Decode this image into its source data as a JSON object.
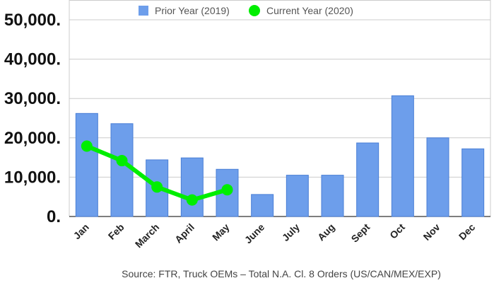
{
  "chart_data": {
    "type": "bar",
    "categories": [
      "Jan",
      "Feb",
      "March",
      "April",
      "May",
      "June",
      "July",
      "Aug",
      "Sept",
      "Oct",
      "Nov",
      "Dec"
    ],
    "series": [
      {
        "name": "Prior Year (2019)",
        "type": "bar",
        "color": "#6d9eeb",
        "values": [
          26200,
          23600,
          14400,
          14900,
          12000,
          5600,
          10500,
          10500,
          18700,
          30700,
          20000,
          17200
        ]
      },
      {
        "name": "Current Year (2020)",
        "type": "line",
        "color": "#00ee00",
        "values": [
          17900,
          14200,
          7500,
          4200,
          6800,
          null,
          null,
          null,
          null,
          null,
          null,
          null
        ]
      }
    ],
    "ylim": [
      0,
      50000
    ],
    "yticks": [
      0,
      10000,
      20000,
      30000,
      40000,
      50000
    ],
    "ytick_labels": [
      "0.",
      "10,000.",
      "20,000.",
      "30,000.",
      "40,000.",
      "50,000."
    ],
    "grid": true,
    "legend_position": "top",
    "xlabel": "",
    "ylabel": "",
    "source": "Source: FTR, Truck OEMs – Total N.A. Cl. 8 Orders (US/CAN/MEX/EXP)"
  }
}
